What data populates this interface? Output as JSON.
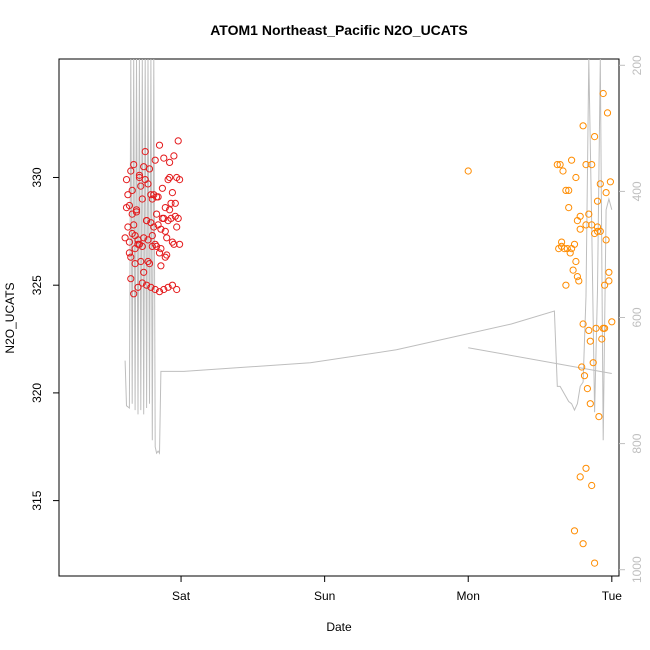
{
  "chart_data": {
    "type": "scatter",
    "title": "ATOM1 Northeast_Pacific N2O_UCATS",
    "xlabel": "Date",
    "ylabel": "N2O_UCATS",
    "x_unit": "days",
    "xlim": [
      -0.85,
      3.05
    ],
    "ylim": [
      311.5,
      335.5
    ],
    "x_ticks": [
      {
        "value": 0,
        "label": "Sat"
      },
      {
        "value": 1,
        "label": "Sun"
      },
      {
        "value": 2,
        "label": "Mon"
      },
      {
        "value": 3,
        "label": "Tue"
      }
    ],
    "y_ticks": [
      {
        "value": 315,
        "label": "315"
      },
      {
        "value": 320,
        "label": "320"
      },
      {
        "value": 325,
        "label": "325"
      },
      {
        "value": 330,
        "label": "330"
      }
    ],
    "secondary_axis": {
      "side": "right",
      "reversed": true,
      "color": "#bfbfbf",
      "lim": [
        1010,
        190
      ],
      "ticks": [
        {
          "value": 200,
          "label": "200"
        },
        {
          "value": 400,
          "label": "400"
        },
        {
          "value": 600,
          "label": "600"
        },
        {
          "value": 800,
          "label": "800"
        },
        {
          "value": 1000,
          "label": "1000"
        }
      ]
    },
    "series": [
      {
        "color": "#e41a1c",
        "kind": "points",
        "x": [
          -0.38,
          -0.37,
          -0.36,
          -0.35,
          -0.34,
          -0.33,
          -0.32,
          -0.31,
          -0.3,
          -0.29,
          -0.28,
          -0.27,
          -0.26,
          -0.25,
          -0.24,
          -0.23,
          -0.22,
          -0.21,
          -0.2,
          -0.19,
          -0.18,
          -0.17,
          -0.16,
          -0.15,
          -0.14,
          -0.13,
          -0.12,
          -0.11,
          -0.1,
          -0.09,
          -0.08,
          -0.07,
          -0.06,
          -0.05,
          -0.04,
          -0.03,
          -0.02,
          -0.01,
          -0.39,
          -0.38,
          -0.37,
          -0.36,
          -0.35,
          -0.34,
          -0.33,
          -0.32,
          -0.31,
          -0.3,
          -0.29,
          -0.28,
          -0.27,
          -0.26,
          -0.25,
          -0.24,
          -0.23,
          -0.22,
          -0.21,
          -0.2,
          -0.19,
          -0.18,
          -0.17,
          -0.16,
          -0.15,
          -0.14,
          -0.13,
          -0.12,
          -0.11,
          -0.1,
          -0.09,
          -0.08,
          -0.07,
          -0.06,
          -0.05,
          -0.04,
          -0.03,
          -0.02,
          -0.01,
          -0.35,
          -0.33,
          -0.3,
          -0.27,
          -0.24,
          -0.21,
          -0.18,
          -0.15,
          -0.12,
          -0.09,
          -0.06,
          -0.03,
          -0.36,
          -0.34,
          -0.32,
          -0.29,
          -0.26,
          -0.23,
          -0.2,
          -0.17,
          -0.14,
          -0.11,
          -0.08
        ],
        "y": [
          329.9,
          327.7,
          328.7,
          330.3,
          329.4,
          330.6,
          327.3,
          328.4,
          327.1,
          330.1,
          329.6,
          329.0,
          330.5,
          331.2,
          328.0,
          329.7,
          330.4,
          327.9,
          326.8,
          329.2,
          330.8,
          328.3,
          329.1,
          331.5,
          327.6,
          329.5,
          330.9,
          328.6,
          327.2,
          329.9,
          330.7,
          328.1,
          329.3,
          331.0,
          328.8,
          330.0,
          331.7,
          329.9,
          327.2,
          328.6,
          329.2,
          327.0,
          326.3,
          328.3,
          327.8,
          326.7,
          328.5,
          326.9,
          330.0,
          326.1,
          326.8,
          327.2,
          329.9,
          328.0,
          327.1,
          326.0,
          329.2,
          329.0,
          327.7,
          326.9,
          329.1,
          327.8,
          326.5,
          326.7,
          328.1,
          328.1,
          326.3,
          326.4,
          328.0,
          330.0,
          328.8,
          327.0,
          326.9,
          328.2,
          327.7,
          328.1,
          326.9,
          325.3,
          324.6,
          324.9,
          325.1,
          325.0,
          324.9,
          324.8,
          324.7,
          324.8,
          324.9,
          325.0,
          324.8,
          326.5,
          327.4,
          326.0,
          326.9,
          325.6,
          326.1,
          327.3,
          326.8,
          325.9,
          327.5,
          328.5
        ]
      },
      {
        "color": "#ff8c00",
        "kind": "points",
        "x": [
          2.0,
          2.62,
          2.64,
          2.66,
          2.68,
          2.7,
          2.72,
          2.74,
          2.76,
          2.78,
          2.8,
          2.82,
          2.84,
          2.86,
          2.88,
          2.9,
          2.92,
          2.94,
          2.96,
          2.98,
          3.0,
          2.63,
          2.65,
          2.67,
          2.69,
          2.71,
          2.73,
          2.75,
          2.77,
          2.79,
          2.81,
          2.83,
          2.85,
          2.87,
          2.89,
          2.91,
          2.93,
          2.95,
          2.97,
          2.99,
          2.65,
          2.7,
          2.75,
          2.8,
          2.85,
          2.9,
          2.95,
          2.68,
          2.72,
          2.76,
          2.78,
          2.82,
          2.86,
          2.9,
          2.94,
          2.98,
          2.84,
          2.88,
          2.92,
          2.96,
          2.78,
          2.82,
          2.86,
          2.74,
          2.8,
          2.88
        ],
        "y": [
          330.3,
          330.6,
          330.6,
          330.3,
          329.4,
          329.4,
          330.8,
          326.9,
          328.0,
          328.2,
          332.4,
          330.6,
          328.3,
          330.6,
          331.9,
          327.7,
          327.5,
          333.9,
          329.3,
          325.2,
          323.3,
          326.7,
          326.8,
          326.7,
          326.7,
          326.5,
          325.7,
          326.1,
          325.2,
          321.2,
          320.8,
          320.2,
          319.5,
          321.4,
          323.0,
          318.9,
          322.5,
          323.0,
          333.0,
          329.8,
          327.0,
          328.6,
          330.0,
          323.2,
          322.4,
          328.9,
          325.0,
          325.0,
          326.7,
          325.4,
          327.6,
          327.8,
          327.8,
          327.5,
          323.0,
          325.6,
          322.9,
          327.4,
          329.7,
          327.1,
          316.1,
          316.5,
          315.7,
          313.6,
          313.0,
          312.1
        ]
      },
      {
        "color": "#bebebe",
        "kind": "line",
        "x": [
          -0.39,
          -0.38,
          -0.36,
          -0.35,
          -0.34,
          -0.33,
          -0.32,
          -0.31,
          -0.3,
          -0.29,
          -0.28,
          -0.27,
          -0.26,
          -0.25,
          -0.24,
          -0.23,
          -0.22,
          -0.21,
          -0.2,
          -0.19,
          -0.18,
          -0.17,
          -0.16,
          -0.15,
          -0.14,
          -0.13,
          -0.12,
          -0.11,
          -0.1,
          -0.09,
          -0.08,
          -0.07,
          -0.06,
          -0.05,
          -0.04,
          -0.03,
          -0.02,
          -0.01,
          0.0,
          0.02,
          0.9,
          1.5,
          1.9,
          2.3,
          2.6,
          2.62,
          2.64,
          2.7,
          2.72,
          2.74,
          2.76,
          2.78,
          2.8,
          2.82,
          2.84,
          2.86,
          2.88,
          2.9,
          2.92,
          2.94,
          2.96,
          2.98,
          3.0
        ],
        "y": [
          321.5,
          319.4,
          319.3,
          335.5,
          319.5,
          335.5,
          319.2,
          335.5,
          319.0,
          335.5,
          319.2,
          335.5,
          319.0,
          335.5,
          319.3,
          335.5,
          319.5,
          335.5,
          317.8,
          335.5,
          317.5,
          317.2,
          317.3,
          317.2,
          321.0,
          321.0,
          321.0,
          321.0,
          321.0,
          321.0,
          321.0,
          321.0,
          321.0,
          321.0,
          321.0,
          321.0,
          321.0,
          321.0,
          321.0,
          321.0,
          321.4,
          322.0,
          322.6,
          323.2,
          323.8,
          320.3,
          320.3,
          319.6,
          319.5,
          319.2,
          319.5,
          320.3,
          320.5,
          324.5,
          335.5,
          327.8,
          319.1,
          324.8,
          335.5,
          317.8,
          328.5,
          329.0,
          328.5
        ]
      },
      {
        "color": "#bebebe",
        "kind": "line",
        "x": [
          2.0,
          3.0
        ],
        "y": [
          322.1,
          320.9
        ]
      }
    ]
  }
}
